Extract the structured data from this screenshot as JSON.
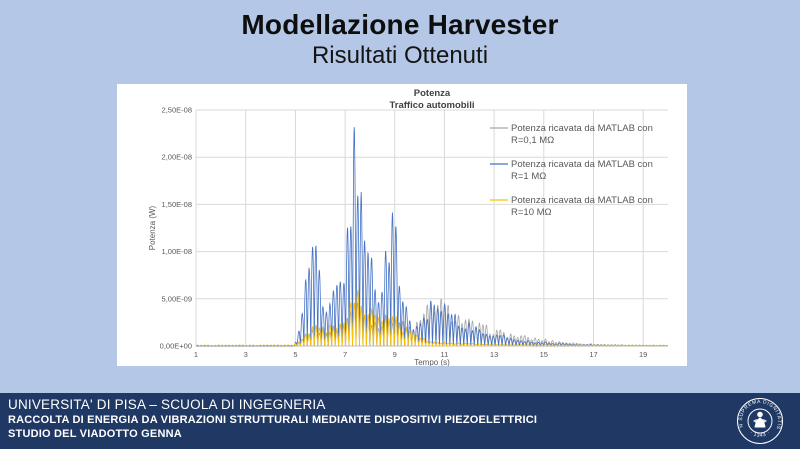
{
  "slide": {
    "title": "Modellazione Harvester",
    "subtitle": "Risultati Ottenuti"
  },
  "footer": {
    "line1": "UNIVERSITA' DI PISA – SCUOLA DI INGEGNERIA",
    "line2": "RACCOLTA DI ENERGIA DA VIBRAZIONI STRUTTURALI MEDIANTE DISPOSITIVI PIEZOELETTRICI",
    "line3": "STUDIO DEL VIADOTTO GENNA",
    "bar_color": "#1f3864",
    "seal": {
      "motto": "IN SUPREMA DIGNITATIS",
      "year": "· 1343 ·"
    }
  },
  "colors": {
    "slide_background": "#b4c7e7",
    "title_text": "#0e0e0e",
    "axis_text": "#595959",
    "chart_title_text": "#404040",
    "gridline": "#d9d9d9",
    "axis_line": "#bfbfbf",
    "panel_background": "#ffffff"
  },
  "chart_data": {
    "type": "line",
    "title": "Potenza",
    "subtitle": "Traffico automobili",
    "xlabel": "Tempo (s)",
    "ylabel": "Potenza (W)",
    "xlim": [
      1,
      20
    ],
    "ylim": [
      0,
      2.5e-08
    ],
    "x_ticks": [
      1,
      3,
      5,
      7,
      9,
      11,
      13,
      15,
      17,
      19
    ],
    "y_tick_labels": [
      "0,00E+00",
      "5,00E-09",
      "1,00E-08",
      "1,50E-08",
      "2,00E-08",
      "2,50E-08"
    ],
    "grid": true,
    "legend_position": "inside-right",
    "signal_note": "dense oscillatory burst signal; series described by amplitude envelopes [t_seconds, peak_watts]",
    "oscillation_period_s": 0.14,
    "series": [
      {
        "name": "Potenza ricavata da MATLAB con R=0,1 MΩ",
        "label_lines": [
          "Potenza ricavata da MATLAB con",
          "R=0,1 MΩ"
        ],
        "color": "#a6a6a6",
        "envelope": [
          [
            1,
            0
          ],
          [
            5.0,
            0
          ],
          [
            5.2,
            8e-10
          ],
          [
            5.5,
            1.8e-09
          ],
          [
            5.8,
            2.5e-09
          ],
          [
            6.1,
            2e-09
          ],
          [
            6.4,
            2e-09
          ],
          [
            6.7,
            2.5e-09
          ],
          [
            7.0,
            3e-09
          ],
          [
            7.3,
            5e-09
          ],
          [
            7.6,
            5.5e-09
          ],
          [
            7.9,
            4e-09
          ],
          [
            8.2,
            3.2e-09
          ],
          [
            8.5,
            2.8e-09
          ],
          [
            8.8,
            4e-09
          ],
          [
            9.1,
            3.5e-09
          ],
          [
            9.4,
            2.5e-09
          ],
          [
            9.7,
            2.2e-09
          ],
          [
            10.0,
            3e-09
          ],
          [
            10.3,
            4.5e-09
          ],
          [
            10.6,
            5.5e-09
          ],
          [
            10.9,
            5.2e-09
          ],
          [
            11.2,
            4.4e-09
          ],
          [
            11.5,
            3.8e-09
          ],
          [
            11.8,
            3.2e-09
          ],
          [
            12.1,
            2.8e-09
          ],
          [
            12.5,
            2.4e-09
          ],
          [
            12.9,
            2e-09
          ],
          [
            13.3,
            1.7e-09
          ],
          [
            13.7,
            1.4e-09
          ],
          [
            14.1,
            1.2e-09
          ],
          [
            14.6,
            9.5e-10
          ],
          [
            15.1,
            7.5e-10
          ],
          [
            15.6,
            5.5e-10
          ],
          [
            16.1,
            4e-10
          ],
          [
            16.6,
            3e-10
          ],
          [
            17.2,
            2.2e-10
          ],
          [
            18,
            1.5e-10
          ],
          [
            19,
            1e-10
          ],
          [
            20,
            7e-11
          ]
        ]
      },
      {
        "name": "Potenza ricavata da MATLAB con R=1 MΩ",
        "label_lines": [
          "Potenza ricavata da MATLAB con",
          "R=1 MΩ"
        ],
        "color": "#4472c4",
        "envelope": [
          [
            1,
            0
          ],
          [
            4.95,
            0
          ],
          [
            5.1,
            1.5e-09
          ],
          [
            5.3,
            5e-09
          ],
          [
            5.5,
            9e-09
          ],
          [
            5.65,
            1.2e-08
          ],
          [
            5.8,
            1.4e-08
          ],
          [
            5.95,
            1e-08
          ],
          [
            6.1,
            6e-09
          ],
          [
            6.3,
            5.5e-09
          ],
          [
            6.5,
            7e-09
          ],
          [
            6.7,
            9e-09
          ],
          [
            6.9,
            7.5e-09
          ],
          [
            7.05,
            1e-08
          ],
          [
            7.2,
            2e-08
          ],
          [
            7.35,
            2.35e-08
          ],
          [
            7.5,
            2.25e-08
          ],
          [
            7.65,
            2.35e-08
          ],
          [
            7.8,
            1.8e-08
          ],
          [
            7.95,
            1.2e-08
          ],
          [
            8.1,
            1e-08
          ],
          [
            8.3,
            7e-09
          ],
          [
            8.5,
            6.5e-09
          ],
          [
            8.7,
            1.2e-08
          ],
          [
            8.85,
            1.75e-08
          ],
          [
            9.0,
            1.5e-08
          ],
          [
            9.15,
            1.1e-08
          ],
          [
            9.3,
            7e-09
          ],
          [
            9.5,
            4e-09
          ],
          [
            9.7,
            2.5e-09
          ],
          [
            9.9,
            2.5e-09
          ],
          [
            10.1,
            3.5e-09
          ],
          [
            10.3,
            4.5e-09
          ],
          [
            10.6,
            6e-09
          ],
          [
            10.9,
            5.5e-09
          ],
          [
            11.2,
            4.5e-09
          ],
          [
            11.5,
            3.5e-09
          ],
          [
            11.8,
            2.8e-09
          ],
          [
            12.2,
            2.2e-09
          ],
          [
            12.6,
            1.8e-09
          ],
          [
            13,
            1.4e-09
          ],
          [
            13.5,
            1.1e-09
          ],
          [
            14,
            8e-10
          ],
          [
            14.5,
            6e-10
          ],
          [
            15,
            4.5e-10
          ],
          [
            15.5,
            3.5e-10
          ],
          [
            16,
            2.5e-10
          ],
          [
            17,
            1.5e-10
          ],
          [
            18,
            1e-10
          ],
          [
            19,
            8e-11
          ],
          [
            20,
            6e-11
          ]
        ]
      },
      {
        "name": "Potenza ricavata da MATLAB con R=10 MΩ",
        "label_lines": [
          "Potenza ricavata da MATLAB con",
          "R=10 MΩ"
        ],
        "color": "#ffc000",
        "envelope": [
          [
            1,
            1.2e-10
          ],
          [
            4.9,
            1.2e-10
          ],
          [
            5.1,
            5e-10
          ],
          [
            5.4,
            1.2e-09
          ],
          [
            5.7,
            2.2e-09
          ],
          [
            6.0,
            2.6e-09
          ],
          [
            6.3,
            2.2e-09
          ],
          [
            6.6,
            2.4e-09
          ],
          [
            6.9,
            3.2e-09
          ],
          [
            7.2,
            4.5e-09
          ],
          [
            7.5,
            6e-09
          ],
          [
            7.8,
            5e-09
          ],
          [
            8.1,
            4e-09
          ],
          [
            8.4,
            3.2e-09
          ],
          [
            8.7,
            3.8e-09
          ],
          [
            9.0,
            3.4e-09
          ],
          [
            9.3,
            2.4e-09
          ],
          [
            9.6,
            1.8e-09
          ],
          [
            9.9,
            1.2e-09
          ],
          [
            10.2,
            9e-10
          ],
          [
            10.6,
            6e-10
          ],
          [
            11,
            4.5e-10
          ],
          [
            11.5,
            3.5e-10
          ],
          [
            12,
            2.8e-10
          ],
          [
            13,
            2e-10
          ],
          [
            14,
            1.6e-10
          ],
          [
            15,
            1.4e-10
          ],
          [
            16,
            1.2e-10
          ],
          [
            18,
            1e-10
          ],
          [
            20,
            1e-10
          ]
        ]
      }
    ]
  }
}
